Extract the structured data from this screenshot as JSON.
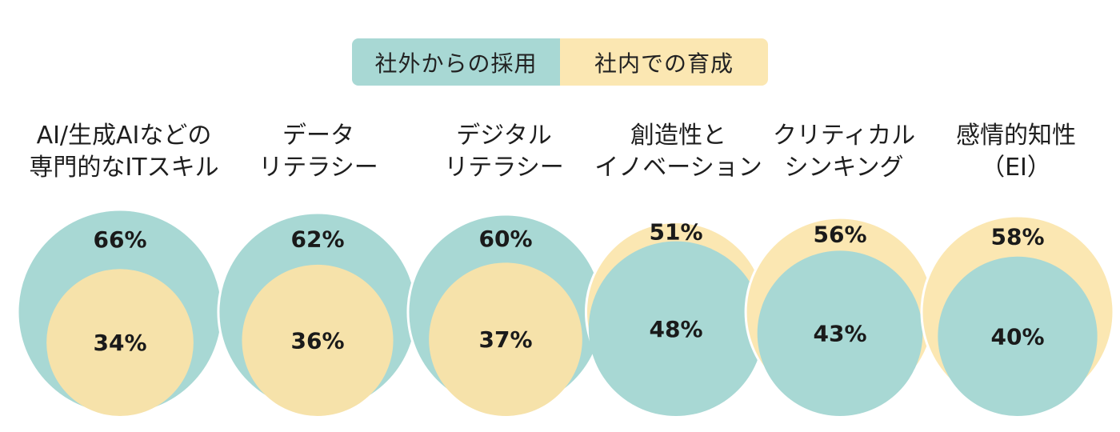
{
  "legend": {
    "external": "社外からの採用",
    "internal": "社内での育成"
  },
  "colors": {
    "external": "#a8d8d4",
    "internal": "#fbe7b2",
    "internal_inner": "#f6e2aa"
  },
  "chart_data": {
    "type": "nested-bubble",
    "series": [
      {
        "name": "社外からの採用",
        "color": "#a8d8d4"
      },
      {
        "name": "社内での育成",
        "color": "#fbe7b2"
      }
    ],
    "categories": [
      {
        "label_lines": [
          "AI/生成AIなどの",
          "専門的なITスキル"
        ],
        "external": 66,
        "internal": 34,
        "external_label": "66%",
        "internal_label": "34%"
      },
      {
        "label_lines": [
          "データ",
          "リテラシー"
        ],
        "external": 62,
        "internal": 36,
        "external_label": "62%",
        "internal_label": "36%"
      },
      {
        "label_lines": [
          "デジタル",
          "リテラシー"
        ],
        "external": 60,
        "internal": 37,
        "external_label": "60%",
        "internal_label": "37%"
      },
      {
        "label_lines": [
          "創造性と",
          "イノベーション"
        ],
        "external": 48,
        "internal": 51,
        "external_label": "48%",
        "internal_label": "51%"
      },
      {
        "label_lines": [
          "クリティカル",
          "シンキング"
        ],
        "external": 43,
        "internal": 56,
        "external_label": "43%",
        "internal_label": "56%"
      },
      {
        "label_lines": [
          "感情的知性",
          "（EI）"
        ],
        "external": 40,
        "internal": 58,
        "external_label": "40%",
        "internal_label": "58%"
      }
    ]
  }
}
